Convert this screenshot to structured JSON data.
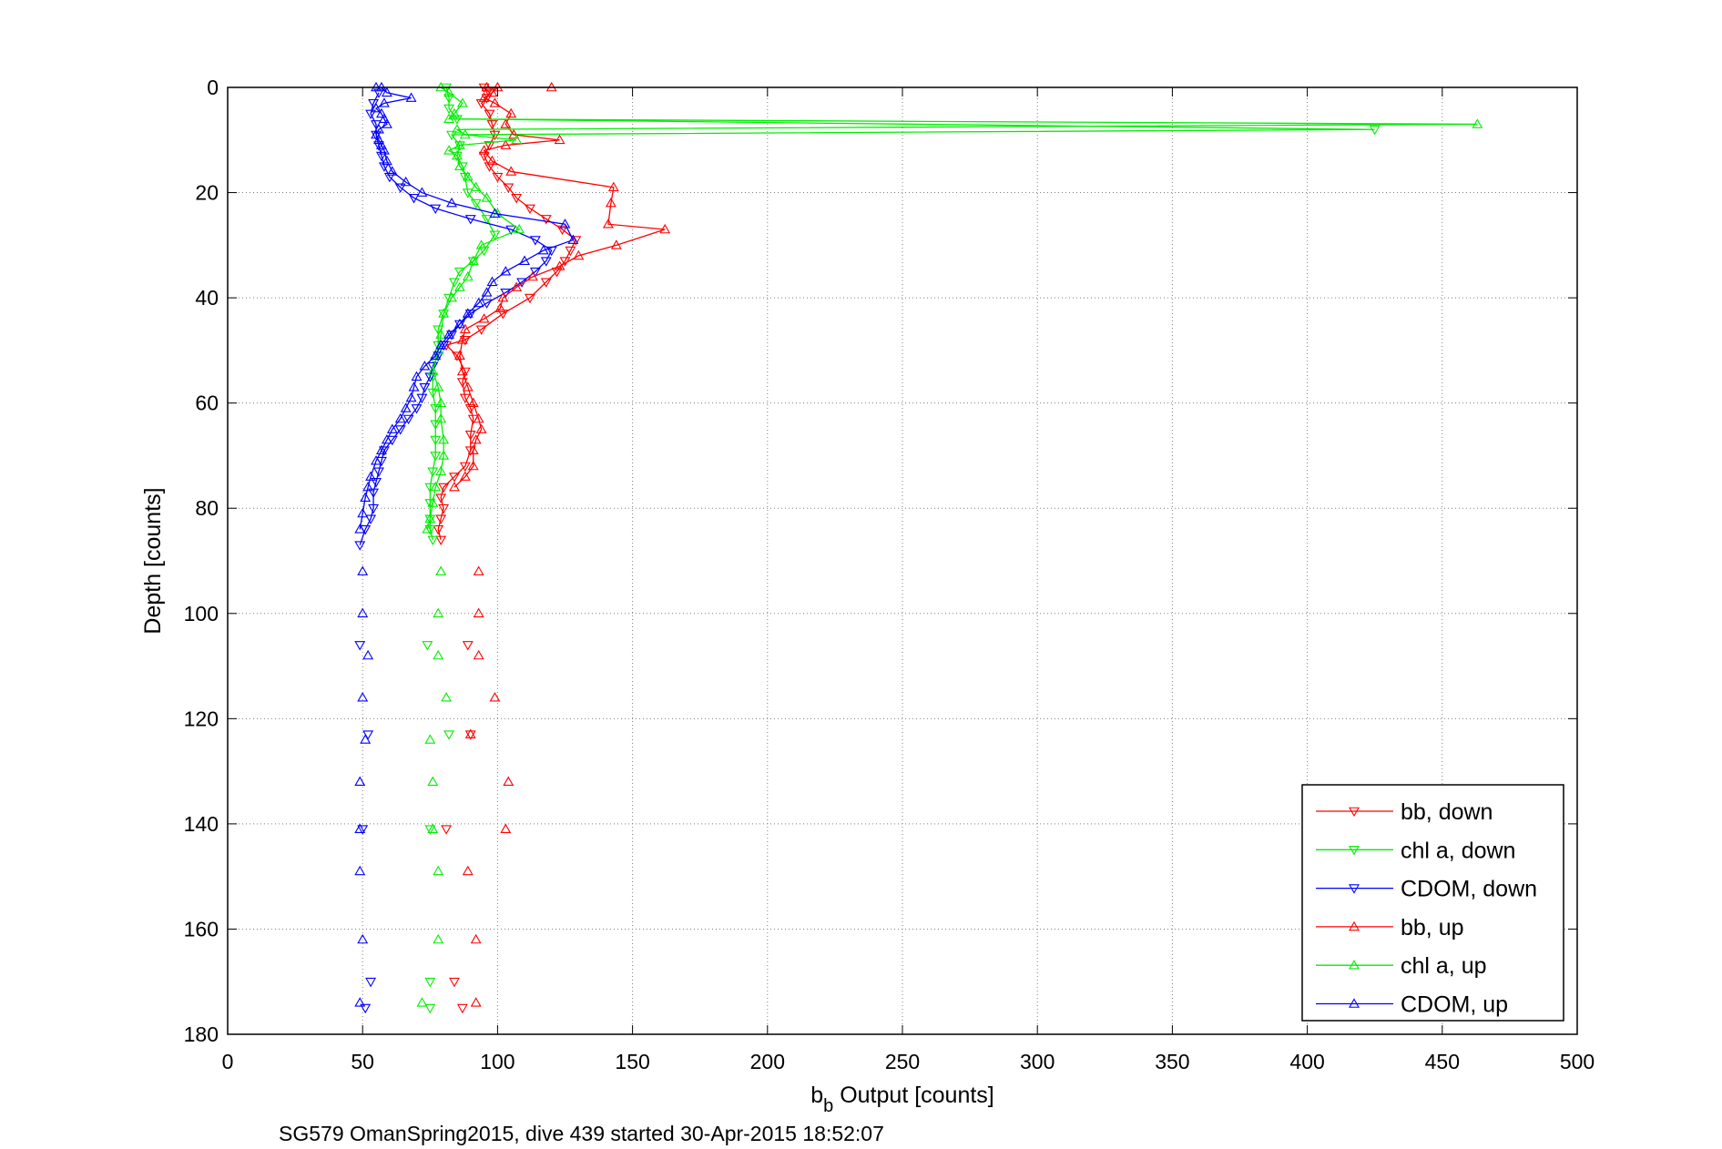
{
  "chart_data": {
    "type": "line",
    "title": "",
    "xlabel_main": "b",
    "xlabel_sub": "b",
    "xlabel_rest": " Output [counts]",
    "ylabel": "Depth [counts]",
    "footer": "SG579 OmanSpring2015, dive 439 started 30-Apr-2015 18:52:07",
    "xlim": [
      0,
      500
    ],
    "ylim": [
      0,
      180
    ],
    "y_reversed": true,
    "xticks": [
      0,
      50,
      100,
      150,
      200,
      250,
      300,
      350,
      400,
      450,
      500
    ],
    "xtick_labels": [
      "0",
      "50",
      "100",
      "150",
      "200",
      "250",
      "300",
      "350",
      "400",
      "450",
      "500"
    ],
    "yticks": [
      0,
      20,
      40,
      60,
      80,
      100,
      120,
      140,
      160,
      180
    ],
    "ytick_labels": [
      "0",
      "20",
      "40",
      "60",
      "80",
      "100",
      "120",
      "140",
      "160",
      "180"
    ],
    "grid": true,
    "legend_position": "bottom-right",
    "series": [
      {
        "name": "bb, down",
        "color": "#ff0000",
        "marker": "triangle-down",
        "linked": true,
        "points": [
          [
            95,
            0
          ],
          [
            97,
            1
          ],
          [
            96,
            2
          ],
          [
            94,
            3
          ],
          [
            97,
            5
          ],
          [
            98,
            7
          ],
          [
            99,
            9
          ],
          [
            97,
            11
          ],
          [
            95,
            13
          ],
          [
            97,
            15
          ],
          [
            100,
            17
          ],
          [
            104,
            19
          ],
          [
            107,
            21
          ],
          [
            112,
            23
          ],
          [
            118,
            25
          ],
          [
            124,
            27
          ],
          [
            129,
            29
          ],
          [
            127,
            31
          ],
          [
            125,
            33
          ],
          [
            122,
            35
          ],
          [
            118,
            37
          ],
          [
            112,
            40
          ],
          [
            102,
            43
          ],
          [
            94,
            46
          ],
          [
            88,
            48
          ],
          [
            81,
            49
          ],
          [
            85,
            51
          ],
          [
            88,
            54
          ],
          [
            87,
            56
          ],
          [
            88,
            59
          ],
          [
            90,
            61
          ],
          [
            91,
            63
          ],
          [
            90,
            66
          ],
          [
            90,
            69
          ],
          [
            88,
            72
          ],
          [
            84,
            74
          ],
          [
            80,
            76
          ],
          [
            79,
            78
          ],
          [
            80,
            80
          ],
          [
            79,
            82
          ],
          [
            78,
            84
          ],
          [
            79,
            86
          ]
        ]
      },
      {
        "name": "chl a, down",
        "color": "#00ee00",
        "marker": "triangle-down",
        "linked": true,
        "points": [
          [
            81,
            0
          ],
          [
            82,
            2
          ],
          [
            82,
            4
          ],
          [
            85,
            6
          ],
          [
            425,
            8
          ],
          [
            83,
            9
          ],
          [
            86,
            11
          ],
          [
            85,
            13
          ],
          [
            87,
            15
          ],
          [
            88,
            17
          ],
          [
            89,
            20
          ],
          [
            92,
            22
          ],
          [
            96,
            25
          ],
          [
            99,
            28
          ],
          [
            95,
            31
          ],
          [
            91,
            33
          ],
          [
            86,
            35
          ],
          [
            84,
            37
          ],
          [
            82,
            40
          ],
          [
            80,
            43
          ],
          [
            78,
            46
          ],
          [
            78,
            49
          ],
          [
            77,
            52
          ],
          [
            76,
            55
          ],
          [
            76,
            58
          ],
          [
            77,
            61
          ],
          [
            77,
            64
          ],
          [
            77,
            67
          ],
          [
            77,
            70
          ],
          [
            76,
            73
          ],
          [
            75,
            76
          ],
          [
            75,
            79
          ],
          [
            75,
            82
          ],
          [
            75,
            84
          ],
          [
            76,
            86
          ]
        ]
      },
      {
        "name": "CDOM, down",
        "color": "#0000ff",
        "marker": "triangle-down",
        "linked": true,
        "points": [
          [
            56,
            1
          ],
          [
            54,
            3
          ],
          [
            53,
            5
          ],
          [
            55,
            7
          ],
          [
            55,
            9
          ],
          [
            56,
            11
          ],
          [
            57,
            13
          ],
          [
            58,
            15
          ],
          [
            60,
            17
          ],
          [
            64,
            19
          ],
          [
            69,
            21
          ],
          [
            77,
            23
          ],
          [
            90,
            25
          ],
          [
            105,
            27
          ],
          [
            114,
            29
          ],
          [
            120,
            31
          ],
          [
            118,
            33
          ],
          [
            114,
            35
          ],
          [
            109,
            37
          ],
          [
            103,
            39
          ],
          [
            96,
            41
          ],
          [
            90,
            43
          ],
          [
            86,
            45
          ],
          [
            83,
            47
          ],
          [
            80,
            49
          ],
          [
            78,
            51
          ],
          [
            76,
            53
          ],
          [
            75,
            55
          ],
          [
            73,
            57
          ],
          [
            72,
            59
          ],
          [
            70,
            61
          ],
          [
            67,
            63
          ],
          [
            64,
            65
          ],
          [
            61,
            67
          ],
          [
            58,
            69
          ],
          [
            57,
            71
          ],
          [
            56,
            73
          ],
          [
            55,
            75
          ],
          [
            54,
            77
          ],
          [
            54,
            80
          ],
          [
            53,
            82
          ],
          [
            51,
            84
          ],
          [
            49,
            87
          ]
        ]
      },
      {
        "name": "bb, up",
        "color": "#ff0000",
        "marker": "triangle-up",
        "linked": true,
        "points": [
          [
            120,
            0
          ],
          [
            96,
            0
          ],
          [
            100,
            0
          ],
          [
            98,
            1
          ],
          [
            95,
            2
          ],
          [
            99,
            3
          ],
          [
            105,
            5
          ],
          [
            103,
            7
          ],
          [
            106,
            9
          ],
          [
            123,
            10
          ],
          [
            103,
            11
          ],
          [
            95,
            12
          ],
          [
            98,
            14
          ],
          [
            105,
            16
          ],
          [
            143,
            19
          ],
          [
            142,
            22
          ],
          [
            141,
            26
          ],
          [
            162,
            27
          ],
          [
            144,
            30
          ],
          [
            130,
            32
          ],
          [
            123,
            34
          ],
          [
            113,
            36
          ],
          [
            107,
            38
          ],
          [
            102,
            40
          ],
          [
            101,
            42
          ],
          [
            95,
            44
          ],
          [
            88,
            46
          ],
          [
            87,
            48
          ],
          [
            86,
            51
          ],
          [
            87,
            54
          ],
          [
            89,
            57
          ],
          [
            91,
            60
          ],
          [
            93,
            63
          ],
          [
            94,
            65
          ],
          [
            92,
            67
          ],
          [
            91,
            69
          ],
          [
            91,
            72
          ],
          [
            88,
            74
          ],
          [
            84,
            76
          ]
        ]
      },
      {
        "name": "chl a, up",
        "color": "#00ee00",
        "marker": "triangle-up",
        "linked": true,
        "points": [
          [
            79,
            0
          ],
          [
            82,
            1
          ],
          [
            87,
            3
          ],
          [
            84,
            5
          ],
          [
            82,
            6
          ],
          [
            463,
            7
          ],
          [
            85,
            8
          ],
          [
            88,
            9
          ],
          [
            107,
            10
          ],
          [
            86,
            11
          ],
          [
            82,
            12
          ],
          [
            85,
            13
          ],
          [
            86,
            15
          ],
          [
            89,
            17
          ],
          [
            92,
            19
          ],
          [
            96,
            21
          ],
          [
            100,
            24
          ],
          [
            108,
            27
          ],
          [
            94,
            30
          ],
          [
            91,
            33
          ],
          [
            89,
            36
          ],
          [
            86,
            38
          ],
          [
            83,
            40
          ],
          [
            80,
            43
          ],
          [
            79,
            47
          ],
          [
            78,
            50
          ],
          [
            76,
            54
          ],
          [
            78,
            57
          ],
          [
            79,
            60
          ],
          [
            79,
            63
          ],
          [
            80,
            67
          ],
          [
            80,
            70
          ],
          [
            79,
            73
          ],
          [
            77,
            76
          ],
          [
            76,
            79
          ],
          [
            75,
            82
          ],
          [
            74,
            84
          ]
        ]
      },
      {
        "name": "CDOM, up",
        "color": "#0000ff",
        "marker": "triangle-up",
        "linked": true,
        "points": [
          [
            55,
            0
          ],
          [
            57,
            0
          ],
          [
            59,
            1
          ],
          [
            68,
            2
          ],
          [
            58,
            3
          ],
          [
            55,
            4
          ],
          [
            57,
            5
          ],
          [
            58,
            6
          ],
          [
            59,
            7
          ],
          [
            56,
            8
          ],
          [
            55,
            9
          ],
          [
            56,
            10
          ],
          [
            57,
            11
          ],
          [
            58,
            12
          ],
          [
            59,
            14
          ],
          [
            61,
            16
          ],
          [
            66,
            18
          ],
          [
            72,
            20
          ],
          [
            83,
            22
          ],
          [
            99,
            24
          ],
          [
            125,
            26
          ],
          [
            128,
            29
          ],
          [
            117,
            31
          ],
          [
            110,
            33
          ],
          [
            103,
            35
          ],
          [
            98,
            37
          ],
          [
            96,
            39
          ],
          [
            93,
            41
          ],
          [
            89,
            43
          ],
          [
            86,
            45
          ],
          [
            82,
            47
          ],
          [
            79,
            49
          ],
          [
            77,
            51
          ],
          [
            73,
            53
          ],
          [
            70,
            55
          ],
          [
            69,
            57
          ],
          [
            68,
            59
          ],
          [
            66,
            61
          ],
          [
            64,
            63
          ],
          [
            61,
            65
          ],
          [
            59,
            67
          ],
          [
            57,
            69
          ],
          [
            55,
            71
          ],
          [
            53,
            74
          ],
          [
            52,
            76
          ],
          [
            51,
            78
          ],
          [
            50,
            81
          ],
          [
            49,
            84
          ]
        ]
      },
      {
        "name": "",
        "color": "#ff0000",
        "marker": "triangle-down",
        "linked": false,
        "points": [
          [
            89,
            106
          ],
          [
            90,
            123
          ],
          [
            81,
            141
          ],
          [
            84,
            170
          ],
          [
            87,
            175
          ]
        ]
      },
      {
        "name": "",
        "color": "#ff0000",
        "marker": "triangle-up",
        "linked": false,
        "points": [
          [
            93,
            92
          ],
          [
            93,
            100
          ],
          [
            93,
            108
          ],
          [
            99,
            116
          ],
          [
            90,
            123
          ],
          [
            104,
            132
          ],
          [
            103,
            141
          ],
          [
            89,
            149
          ],
          [
            92,
            162
          ],
          [
            92,
            174
          ]
        ]
      },
      {
        "name": "",
        "color": "#00ee00",
        "marker": "triangle-down",
        "linked": false,
        "points": [
          [
            74,
            106
          ],
          [
            82,
            123
          ],
          [
            75,
            141
          ],
          [
            75,
            170
          ],
          [
            75,
            175
          ]
        ]
      },
      {
        "name": "",
        "color": "#00ee00",
        "marker": "triangle-up",
        "linked": false,
        "points": [
          [
            79,
            92
          ],
          [
            78,
            100
          ],
          [
            78,
            108
          ],
          [
            81,
            116
          ],
          [
            75,
            124
          ],
          [
            76,
            132
          ],
          [
            76,
            141
          ],
          [
            78,
            149
          ],
          [
            78,
            162
          ],
          [
            72,
            174
          ]
        ]
      },
      {
        "name": "",
        "color": "#0000ff",
        "marker": "triangle-down",
        "linked": false,
        "points": [
          [
            49,
            106
          ],
          [
            52,
            123
          ],
          [
            50,
            141
          ],
          [
            53,
            170
          ],
          [
            51,
            175
          ]
        ]
      },
      {
        "name": "",
        "color": "#0000ff",
        "marker": "triangle-up",
        "linked": false,
        "points": [
          [
            50,
            92
          ],
          [
            50,
            100
          ],
          [
            52,
            108
          ],
          [
            50,
            116
          ],
          [
            51,
            124
          ],
          [
            49,
            132
          ],
          [
            49,
            141
          ],
          [
            49,
            149
          ],
          [
            50,
            162
          ],
          [
            49,
            174
          ]
        ]
      }
    ]
  }
}
